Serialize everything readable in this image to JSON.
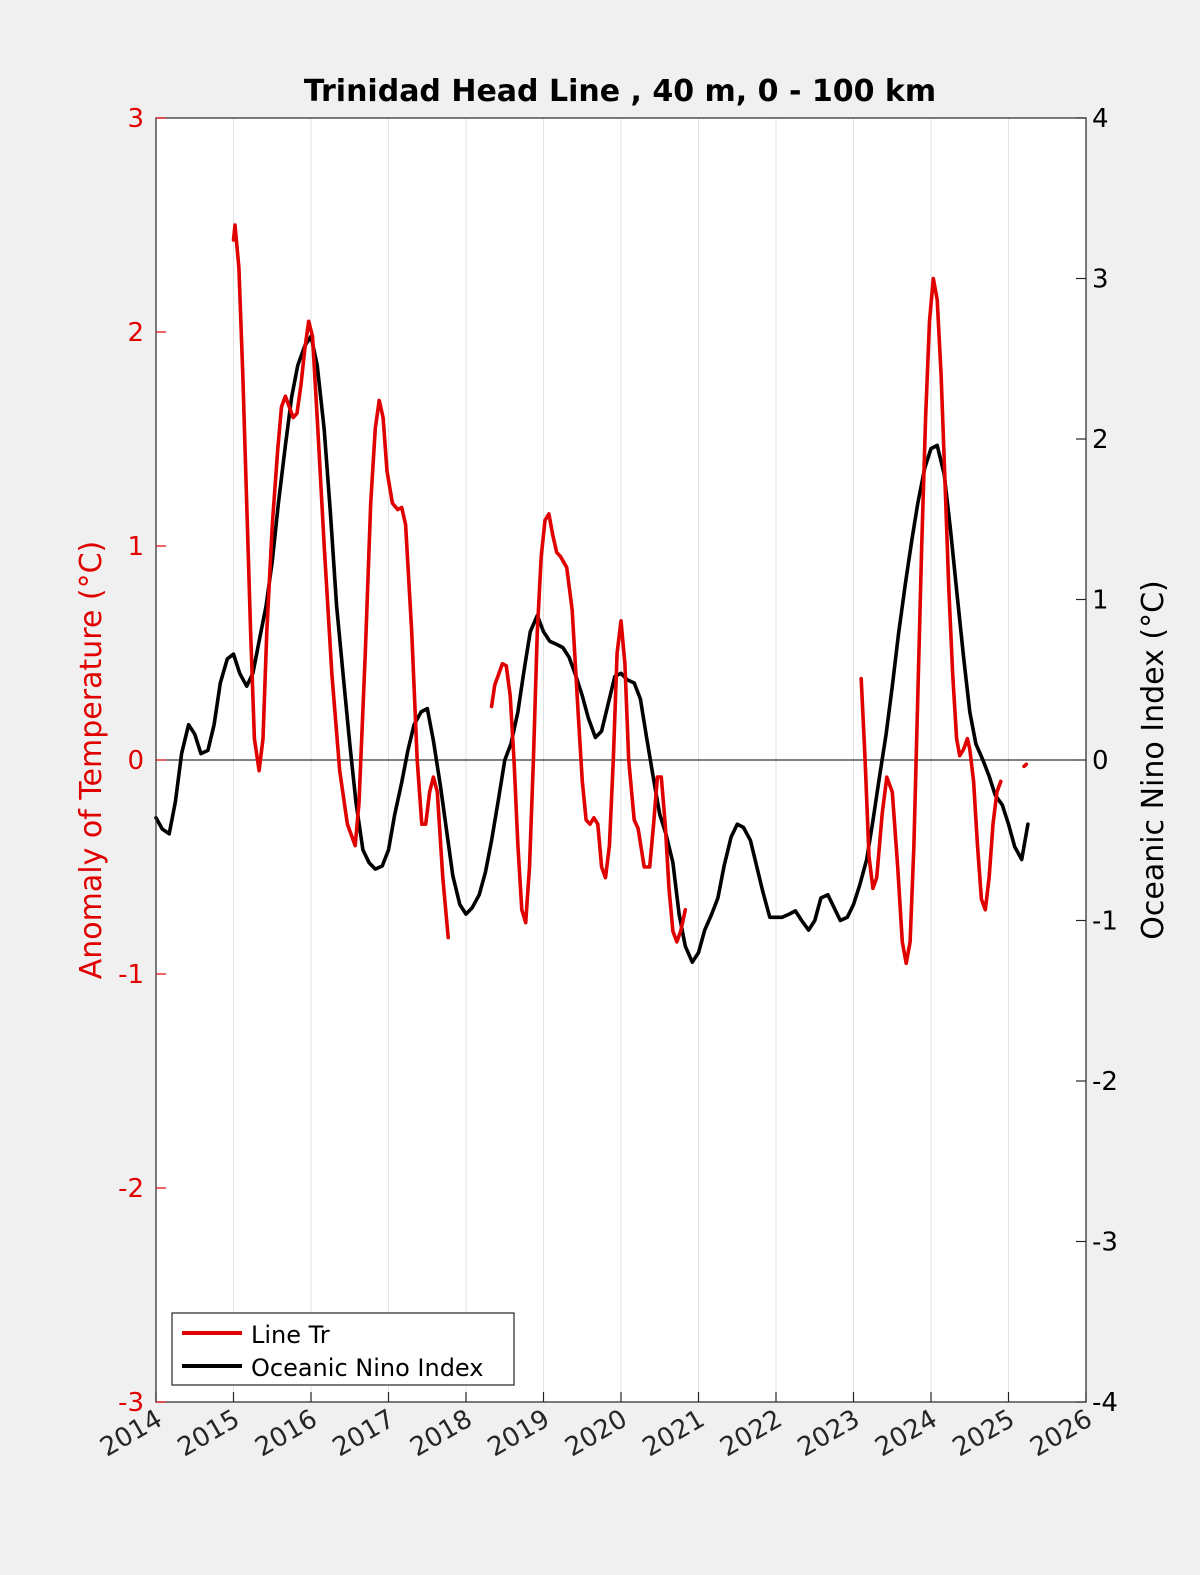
{
  "chart_data": {
    "type": "line",
    "title": "Trinidad Head Line , 40 m, 0 - 100 km",
    "xlabel": "",
    "ylabel_left": "Anomaly of Temperature (°C)",
    "ylabel_right": "Oceanic Nino Index (°C)",
    "xlim": [
      2014,
      2026
    ],
    "ylim_left": [
      -3,
      3
    ],
    "ylim_right": [
      -4,
      4
    ],
    "x_ticks": [
      "2014",
      "2015",
      "2016",
      "2017",
      "2018",
      "2019",
      "2020",
      "2021",
      "2022",
      "2023",
      "2024",
      "2025",
      "2026"
    ],
    "y_left_ticks": [
      "-3",
      "-2",
      "-1",
      "0",
      "1",
      "2",
      "3"
    ],
    "y_right_ticks": [
      "-4",
      "-3",
      "-2",
      "-1",
      "0",
      "1",
      "2",
      "3",
      "4"
    ],
    "x_grid": true,
    "zero_line": true,
    "legend_position": "bottom-left",
    "colors": {
      "line_tr": "#e00000",
      "oni": "#000000",
      "axis_left": "#e00000",
      "axis_right": "#000000"
    },
    "series": [
      {
        "name": "Line Tr",
        "axis": "left",
        "color": "#e00000",
        "segments": [
          [
            [
              2015.0,
              2.43
            ],
            [
              2015.02,
              2.5
            ],
            [
              2015.07,
              2.3
            ],
            [
              2015.12,
              1.8
            ],
            [
              2015.17,
              1.2
            ],
            [
              2015.22,
              0.6
            ],
            [
              2015.27,
              0.1
            ],
            [
              2015.33,
              -0.05
            ],
            [
              2015.38,
              0.1
            ],
            [
              2015.43,
              0.6
            ],
            [
              2015.5,
              1.1
            ],
            [
              2015.57,
              1.45
            ],
            [
              2015.62,
              1.65
            ],
            [
              2015.67,
              1.7
            ],
            [
              2015.72,
              1.65
            ],
            [
              2015.77,
              1.6
            ],
            [
              2015.82,
              1.62
            ],
            [
              2015.87,
              1.75
            ],
            [
              2015.92,
              1.92
            ],
            [
              2015.97,
              2.05
            ],
            [
              2016.02,
              1.98
            ],
            [
              2016.08,
              1.6
            ],
            [
              2016.17,
              1.0
            ],
            [
              2016.27,
              0.4
            ],
            [
              2016.37,
              -0.05
            ],
            [
              2016.47,
              -0.3
            ],
            [
              2016.57,
              -0.4
            ],
            [
              2016.62,
              -0.2
            ],
            [
              2016.7,
              0.5
            ],
            [
              2016.77,
              1.2
            ],
            [
              2016.83,
              1.55
            ],
            [
              2016.88,
              1.68
            ],
            [
              2016.93,
              1.6
            ],
            [
              2016.98,
              1.35
            ],
            [
              2017.05,
              1.2
            ],
            [
              2017.12,
              1.17
            ],
            [
              2017.17,
              1.18
            ],
            [
              2017.22,
              1.1
            ],
            [
              2017.3,
              0.6
            ],
            [
              2017.37,
              0.0
            ],
            [
              2017.43,
              -0.3
            ],
            [
              2017.48,
              -0.3
            ],
            [
              2017.53,
              -0.15
            ],
            [
              2017.58,
              -0.08
            ],
            [
              2017.63,
              -0.15
            ],
            [
              2017.7,
              -0.55
            ],
            [
              2017.77,
              -0.83
            ]
          ],
          [
            [
              2018.33,
              0.25
            ],
            [
              2018.37,
              0.35
            ],
            [
              2018.42,
              0.4
            ],
            [
              2018.47,
              0.45
            ],
            [
              2018.52,
              0.44
            ],
            [
              2018.57,
              0.3
            ],
            [
              2018.62,
              0.0
            ],
            [
              2018.67,
              -0.4
            ],
            [
              2018.72,
              -0.7
            ],
            [
              2018.77,
              -0.76
            ],
            [
              2018.82,
              -0.5
            ],
            [
              2018.87,
              0.0
            ],
            [
              2018.92,
              0.6
            ],
            [
              2018.97,
              0.95
            ],
            [
              2019.02,
              1.12
            ],
            [
              2019.07,
              1.15
            ],
            [
              2019.12,
              1.05
            ],
            [
              2019.17,
              0.97
            ],
            [
              2019.22,
              0.95
            ],
            [
              2019.3,
              0.9
            ],
            [
              2019.37,
              0.7
            ],
            [
              2019.45,
              0.2
            ],
            [
              2019.5,
              -0.1
            ],
            [
              2019.55,
              -0.28
            ],
            [
              2019.6,
              -0.3
            ],
            [
              2019.65,
              -0.27
            ],
            [
              2019.7,
              -0.3
            ],
            [
              2019.75,
              -0.5
            ],
            [
              2019.8,
              -0.55
            ],
            [
              2019.85,
              -0.4
            ],
            [
              2019.9,
              0.0
            ],
            [
              2019.95,
              0.5
            ],
            [
              2020.0,
              0.65
            ],
            [
              2020.05,
              0.45
            ],
            [
              2020.1,
              0.0
            ],
            [
              2020.17,
              -0.28
            ],
            [
              2020.22,
              -0.32
            ],
            [
              2020.3,
              -0.5
            ],
            [
              2020.37,
              -0.5
            ],
            [
              2020.42,
              -0.3
            ],
            [
              2020.47,
              -0.08
            ],
            [
              2020.52,
              -0.08
            ],
            [
              2020.57,
              -0.3
            ],
            [
              2020.62,
              -0.6
            ],
            [
              2020.67,
              -0.8
            ],
            [
              2020.72,
              -0.85
            ],
            [
              2020.77,
              -0.8
            ],
            [
              2020.83,
              -0.7
            ]
          ],
          [
            [
              2023.1,
              0.38
            ],
            [
              2023.15,
              0.0
            ],
            [
              2023.2,
              -0.45
            ],
            [
              2023.25,
              -0.6
            ],
            [
              2023.3,
              -0.55
            ],
            [
              2023.37,
              -0.25
            ],
            [
              2023.43,
              -0.08
            ],
            [
              2023.5,
              -0.15
            ],
            [
              2023.57,
              -0.5
            ],
            [
              2023.63,
              -0.85
            ],
            [
              2023.68,
              -0.95
            ],
            [
              2023.73,
              -0.85
            ],
            [
              2023.78,
              -0.4
            ],
            [
              2023.83,
              0.3
            ],
            [
              2023.88,
              1.0
            ],
            [
              2023.93,
              1.6
            ],
            [
              2023.98,
              2.05
            ],
            [
              2024.03,
              2.25
            ],
            [
              2024.08,
              2.15
            ],
            [
              2024.13,
              1.8
            ],
            [
              2024.18,
              1.3
            ],
            [
              2024.23,
              0.8
            ],
            [
              2024.28,
              0.4
            ],
            [
              2024.33,
              0.1
            ],
            [
              2024.37,
              0.02
            ],
            [
              2024.42,
              0.05
            ],
            [
              2024.47,
              0.1
            ],
            [
              2024.5,
              0.05
            ],
            [
              2024.55,
              -0.1
            ],
            [
              2024.6,
              -0.4
            ],
            [
              2024.65,
              -0.65
            ],
            [
              2024.7,
              -0.7
            ],
            [
              2024.75,
              -0.55
            ],
            [
              2024.8,
              -0.3
            ],
            [
              2024.85,
              -0.15
            ],
            [
              2024.9,
              -0.1
            ]
          ],
          [
            [
              2025.2,
              -0.03
            ],
            [
              2025.23,
              -0.02
            ]
          ]
        ]
      },
      {
        "name": "Oceanic Nino Index",
        "axis": "right",
        "color": "#000000",
        "points": [
          [
            2014.0,
            -0.36
          ],
          [
            2014.08,
            -0.43
          ],
          [
            2014.17,
            -0.46
          ],
          [
            2014.25,
            -0.26
          ],
          [
            2014.33,
            0.04
          ],
          [
            2014.42,
            0.22
          ],
          [
            2014.5,
            0.16
          ],
          [
            2014.58,
            0.04
          ],
          [
            2014.67,
            0.06
          ],
          [
            2014.75,
            0.22
          ],
          [
            2014.83,
            0.48
          ],
          [
            2014.92,
            0.63
          ],
          [
            2015.0,
            0.66
          ],
          [
            2015.08,
            0.54
          ],
          [
            2015.17,
            0.46
          ],
          [
            2015.25,
            0.54
          ],
          [
            2015.33,
            0.74
          ],
          [
            2015.42,
            0.96
          ],
          [
            2015.5,
            1.24
          ],
          [
            2015.58,
            1.6
          ],
          [
            2015.67,
            1.96
          ],
          [
            2015.75,
            2.26
          ],
          [
            2015.83,
            2.46
          ],
          [
            2015.92,
            2.58
          ],
          [
            2016.0,
            2.64
          ],
          [
            2016.08,
            2.46
          ],
          [
            2016.17,
            2.06
          ],
          [
            2016.25,
            1.54
          ],
          [
            2016.33,
            0.96
          ],
          [
            2016.42,
            0.5
          ],
          [
            2016.5,
            0.1
          ],
          [
            2016.58,
            -0.26
          ],
          [
            2016.67,
            -0.56
          ],
          [
            2016.75,
            -0.64
          ],
          [
            2016.83,
            -0.68
          ],
          [
            2016.92,
            -0.66
          ],
          [
            2017.0,
            -0.56
          ],
          [
            2017.08,
            -0.34
          ],
          [
            2017.17,
            -0.14
          ],
          [
            2017.25,
            0.06
          ],
          [
            2017.33,
            0.22
          ],
          [
            2017.42,
            0.3
          ],
          [
            2017.5,
            0.32
          ],
          [
            2017.58,
            0.12
          ],
          [
            2017.67,
            -0.16
          ],
          [
            2017.75,
            -0.44
          ],
          [
            2017.83,
            -0.72
          ],
          [
            2017.92,
            -0.9
          ],
          [
            2018.0,
            -0.96
          ],
          [
            2018.08,
            -0.92
          ],
          [
            2018.17,
            -0.84
          ],
          [
            2018.25,
            -0.7
          ],
          [
            2018.33,
            -0.5
          ],
          [
            2018.42,
            -0.24
          ],
          [
            2018.5,
            0.0
          ],
          [
            2018.58,
            0.1
          ],
          [
            2018.67,
            0.3
          ],
          [
            2018.75,
            0.56
          ],
          [
            2018.83,
            0.8
          ],
          [
            2018.92,
            0.9
          ],
          [
            2019.0,
            0.8
          ],
          [
            2019.08,
            0.74
          ],
          [
            2019.17,
            0.72
          ],
          [
            2019.25,
            0.7
          ],
          [
            2019.33,
            0.64
          ],
          [
            2019.42,
            0.52
          ],
          [
            2019.5,
            0.4
          ],
          [
            2019.58,
            0.26
          ],
          [
            2019.67,
            0.14
          ],
          [
            2019.75,
            0.18
          ],
          [
            2019.83,
            0.34
          ],
          [
            2019.92,
            0.52
          ],
          [
            2020.0,
            0.54
          ],
          [
            2020.08,
            0.5
          ],
          [
            2020.17,
            0.48
          ],
          [
            2020.25,
            0.38
          ],
          [
            2020.33,
            0.14
          ],
          [
            2020.42,
            -0.12
          ],
          [
            2020.5,
            -0.34
          ],
          [
            2020.58,
            -0.46
          ],
          [
            2020.67,
            -0.64
          ],
          [
            2020.75,
            -0.96
          ],
          [
            2020.83,
            -1.16
          ],
          [
            2020.92,
            -1.26
          ],
          [
            2021.0,
            -1.2
          ],
          [
            2021.08,
            -1.06
          ],
          [
            2021.17,
            -0.96
          ],
          [
            2021.25,
            -0.86
          ],
          [
            2021.33,
            -0.66
          ],
          [
            2021.42,
            -0.48
          ],
          [
            2021.5,
            -0.4
          ],
          [
            2021.58,
            -0.42
          ],
          [
            2021.67,
            -0.5
          ],
          [
            2021.75,
            -0.66
          ],
          [
            2021.83,
            -0.82
          ],
          [
            2021.92,
            -0.98
          ],
          [
            2022.0,
            -0.98
          ],
          [
            2022.08,
            -0.98
          ],
          [
            2022.17,
            -0.96
          ],
          [
            2022.25,
            -0.94
          ],
          [
            2022.33,
            -1.0
          ],
          [
            2022.42,
            -1.06
          ],
          [
            2022.5,
            -1.0
          ],
          [
            2022.58,
            -0.86
          ],
          [
            2022.67,
            -0.84
          ],
          [
            2022.75,
            -0.92
          ],
          [
            2022.83,
            -1.0
          ],
          [
            2022.92,
            -0.98
          ],
          [
            2023.0,
            -0.9
          ],
          [
            2023.08,
            -0.78
          ],
          [
            2023.17,
            -0.62
          ],
          [
            2023.25,
            -0.38
          ],
          [
            2023.33,
            -0.12
          ],
          [
            2023.42,
            0.16
          ],
          [
            2023.5,
            0.46
          ],
          [
            2023.58,
            0.78
          ],
          [
            2023.67,
            1.1
          ],
          [
            2023.75,
            1.36
          ],
          [
            2023.83,
            1.6
          ],
          [
            2023.92,
            1.82
          ],
          [
            2024.0,
            1.94
          ],
          [
            2024.08,
            1.96
          ],
          [
            2024.17,
            1.78
          ],
          [
            2024.25,
            1.44
          ],
          [
            2024.33,
            1.06
          ],
          [
            2024.42,
            0.64
          ],
          [
            2024.5,
            0.3
          ],
          [
            2024.58,
            0.1
          ],
          [
            2024.67,
            0.0
          ],
          [
            2024.75,
            -0.1
          ],
          [
            2024.83,
            -0.22
          ],
          [
            2024.92,
            -0.28
          ],
          [
            2025.0,
            -0.4
          ],
          [
            2025.08,
            -0.54
          ],
          [
            2025.17,
            -0.62
          ],
          [
            2025.25,
            -0.4
          ]
        ]
      }
    ]
  }
}
